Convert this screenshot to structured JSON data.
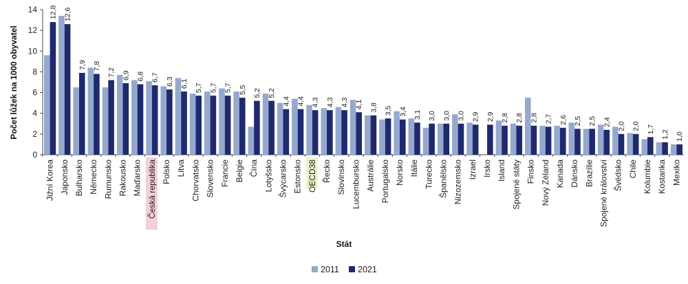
{
  "chart_data": {
    "type": "bar",
    "xlabel": "Stát",
    "ylabel": "Počet lůžek na 1000 obyvatel",
    "ylim": [
      0,
      14
    ],
    "yticks": [
      0,
      2,
      4,
      6,
      8,
      10,
      12,
      14
    ],
    "grid": false,
    "legend_position": "bottom",
    "categories": [
      "Jižní Korea",
      "Japonsko",
      "Bulharsko",
      "Německo",
      "Rumunsko",
      "Rakousko",
      "Maďarsko",
      "Česká republika",
      "Polsko",
      "Litva",
      "Chorvatsko",
      "Slovensko",
      "Francie",
      "Belgie",
      "Čína",
      "Lotyšsko",
      "Švýcarsko",
      "Estonsko",
      "OECD38",
      "Řecko",
      "Slovinsko",
      "Lucembursko",
      "Austrálie",
      "Portugalsko",
      "Norsko",
      "Itálie",
      "Turecko",
      "Španělsko",
      "Nizozemsko",
      "Izrael",
      "Irsko",
      "Island",
      "Spojené státy",
      "Finsko",
      "Nový Zéland",
      "Kanada",
      "Dánsko",
      "Brazílie",
      "Spojené království",
      "Švédsko",
      "Chile",
      "Kolumbie",
      "Kostarika",
      "Mexiko"
    ],
    "highlight": {
      "Česká republika": "#f4cfd6",
      "OECD38": "#ecf2c9"
    },
    "series": [
      {
        "name": "2011",
        "color": "#95a9cf",
        "values": [
          9.6,
          13.4,
          6.5,
          8.4,
          6.5,
          7.7,
          7.2,
          7.1,
          6.6,
          7.4,
          5.9,
          6.1,
          6.4,
          6.1,
          2.7,
          5.9,
          5.0,
          5.4,
          4.8,
          4.5,
          4.6,
          5.3,
          3.8,
          3.4,
          4.2,
          3.5,
          2.6,
          3.0,
          3.9,
          3.1,
          0,
          3.3,
          3.0,
          5.5,
          2.8,
          2.8,
          3.1,
          2.5,
          2.9,
          2.7,
          2.1,
          1.5,
          1.2,
          1.0
        ]
      },
      {
        "name": "2021",
        "color": "#1f2a6e",
        "values": [
          12.8,
          12.6,
          7.9,
          7.8,
          7.2,
          6.9,
          6.8,
          6.7,
          6.3,
          6.1,
          5.7,
          5.7,
          5.7,
          5.5,
          5.2,
          5.2,
          4.4,
          4.4,
          4.3,
          4.3,
          4.3,
          4.1,
          3.8,
          3.5,
          3.4,
          3.1,
          3.0,
          3.0,
          3.0,
          2.9,
          2.9,
          2.8,
          2.8,
          2.8,
          2.7,
          2.6,
          2.5,
          2.5,
          2.4,
          2.0,
          2.0,
          1.7,
          1.2,
          1.0
        ]
      }
    ],
    "data_labels": [
      "12,8",
      "12,6",
      "7,9",
      "7,8",
      "7,2",
      "6,9",
      "6,8",
      "6,7",
      "6,3",
      "6,1",
      "5,7",
      "5,7",
      "5,7",
      "5,5",
      "5,2",
      "5,2",
      "4,4",
      "4,4",
      "4,3",
      "4,3",
      "4,3",
      "4,1",
      "3,8",
      "3,5",
      "3,4",
      "3,1",
      "3,0",
      "3,0",
      "3,0",
      "2,9",
      "2,9",
      "2,8",
      "2,8",
      "2,8",
      "2,7",
      "2,6",
      "2,5",
      "2,5",
      "2,4",
      "2,0",
      "2,0",
      "1,7",
      "1,2",
      "1,0"
    ]
  }
}
